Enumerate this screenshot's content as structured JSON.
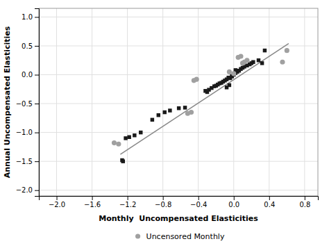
{
  "chart_data": {
    "type": "scatter",
    "xlabel": "Monthly  Uncompensated Elasticities",
    "ylabel": "Annual Uncompensated Elasticities",
    "xlim": [
      -2.2,
      0.95
    ],
    "ylim": [
      -2.1,
      1.15
    ],
    "xticks": [
      {
        "value": -2.0,
        "label": "−2.0"
      },
      {
        "value": -1.6,
        "label": "−1.6"
      },
      {
        "value": -1.2,
        "label": "−1.2"
      },
      {
        "value": -0.8,
        "label": "−0.8"
      },
      {
        "value": -0.4,
        "label": "−0.4"
      },
      {
        "value": 0.0,
        "label": "0.0"
      },
      {
        "value": 0.4,
        "label": "0.4"
      },
      {
        "value": 0.8,
        "label": "0.8"
      }
    ],
    "yticks": [
      {
        "value": -2.0,
        "label": "−2.0"
      },
      {
        "value": -1.5,
        "label": "−1.5"
      },
      {
        "value": -1.0,
        "label": "−1.0"
      },
      {
        "value": -0.5,
        "label": "−0.5"
      },
      {
        "value": 0.0,
        "label": "0.0"
      },
      {
        "value": 0.5,
        "label": "0.5"
      },
      {
        "value": 1.0,
        "label": "1.0"
      }
    ],
    "grid": true,
    "legend": "bottom",
    "series": [
      {
        "type": "line",
        "color": "#888888",
        "x": [
          -1.28,
          0.62
        ],
        "values": [
          -1.38,
          0.54
        ]
      },
      {
        "type": "scatter",
        "color": "#1a1a1a",
        "marker": "square",
        "x": [
          -0.02,
          -0.04,
          -0.06,
          -0.08,
          -0.1,
          -0.12,
          -0.14,
          -0.16,
          -0.18,
          -0.2,
          -0.22,
          -0.25,
          -0.28,
          -0.3,
          -0.32,
          0.0,
          0.02,
          0.04,
          0.06,
          0.08,
          0.1,
          0.12,
          0.15,
          0.18,
          0.2,
          0.22,
          0.28,
          0.32,
          0.35,
          -0.55,
          -0.62,
          -0.72,
          -0.78,
          -0.85,
          -0.92,
          -1.05,
          -1.12,
          -1.18,
          -1.22,
          -1.25,
          -1.26,
          -0.05,
          -0.08,
          0.02,
          -0.02
        ],
        "values": [
          -0.03,
          -0.06,
          -0.05,
          -0.08,
          -0.1,
          -0.12,
          -0.14,
          -0.15,
          -0.17,
          -0.19,
          -0.2,
          -0.23,
          -0.26,
          -0.3,
          -0.28,
          0.0,
          0.03,
          0.05,
          0.07,
          0.1,
          0.12,
          0.14,
          0.16,
          0.18,
          0.2,
          0.22,
          0.25,
          0.2,
          0.42,
          -0.57,
          -0.58,
          -0.62,
          -0.65,
          -0.7,
          -0.78,
          -1.0,
          -1.05,
          -1.08,
          -1.1,
          -1.5,
          -1.48,
          -0.18,
          -0.22,
          0.08,
          -0.02
        ]
      },
      {
        "type": "scatter",
        "name": "Uncensored Monthly",
        "color": "#a0a0a0",
        "marker": "circle",
        "x": [
          -0.45,
          -0.42,
          -0.48,
          -0.52,
          -1.3,
          -1.35,
          0.05,
          0.08,
          0.55,
          0.6,
          -0.05,
          0.0,
          0.1,
          0.15,
          0.12
        ],
        "values": [
          -0.1,
          -0.08,
          -0.65,
          -0.67,
          -1.2,
          -1.18,
          0.3,
          0.32,
          0.22,
          0.42,
          0.05,
          0.02,
          0.2,
          0.25,
          0.22
        ]
      }
    ]
  }
}
